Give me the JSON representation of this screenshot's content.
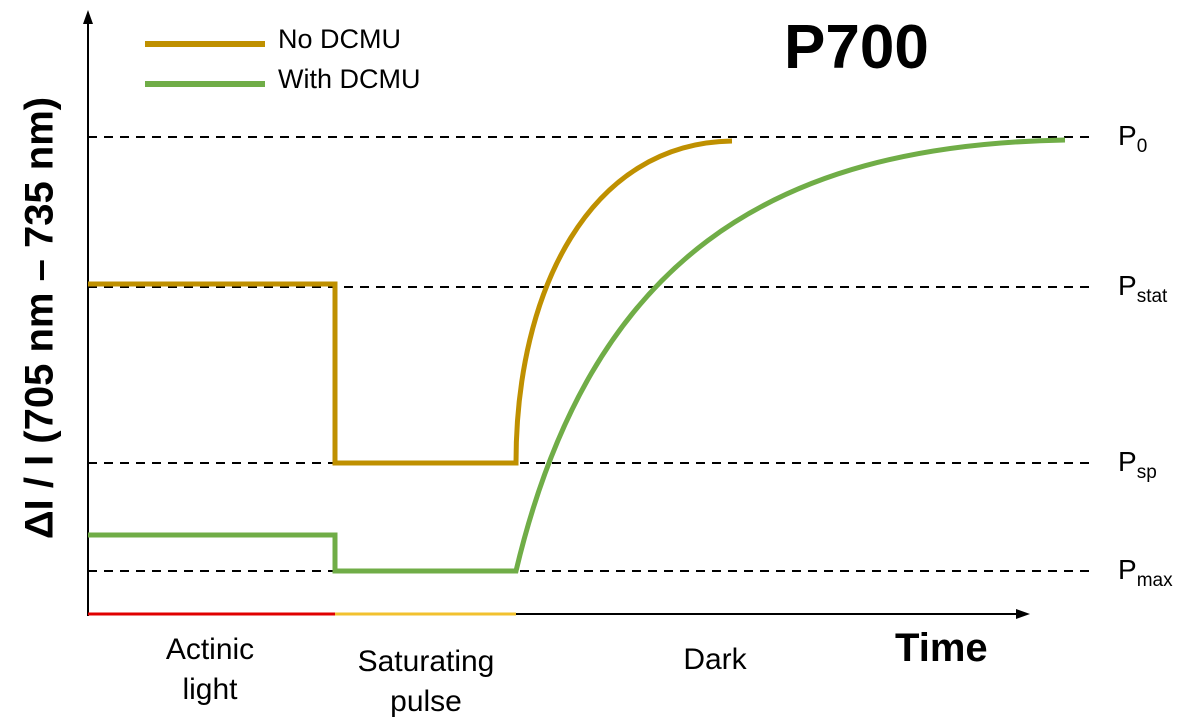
{
  "title": "P700",
  "y_axis_label": "ΔI / I (705 nm – 735 nm)",
  "x_axis_label": "Time",
  "legend": [
    {
      "label": "No DCMU",
      "color": "#bf9000"
    },
    {
      "label": "With DCMU",
      "color": "#70ad47"
    }
  ],
  "levels": [
    {
      "base": "P",
      "sub": "0"
    },
    {
      "base": "P",
      "sub": "stat"
    },
    {
      "base": "P",
      "sub": "sp"
    },
    {
      "base": "P",
      "sub": "max"
    }
  ],
  "phases": [
    {
      "label": "Actinic light",
      "line1": "Actinic",
      "line2": "light",
      "color": "#e00000"
    },
    {
      "label": "Saturating pulse",
      "line1": "Saturating",
      "line2": "pulse",
      "color": "#f2c12e"
    },
    {
      "label": "Dark",
      "line1": "Dark",
      "line2": "",
      "color": "#000000"
    }
  ],
  "colors": {
    "no_dcmu": "#bf9000",
    "with_dcmu": "#70ad47",
    "axis": "#000000",
    "reference_line": "#000000"
  }
}
